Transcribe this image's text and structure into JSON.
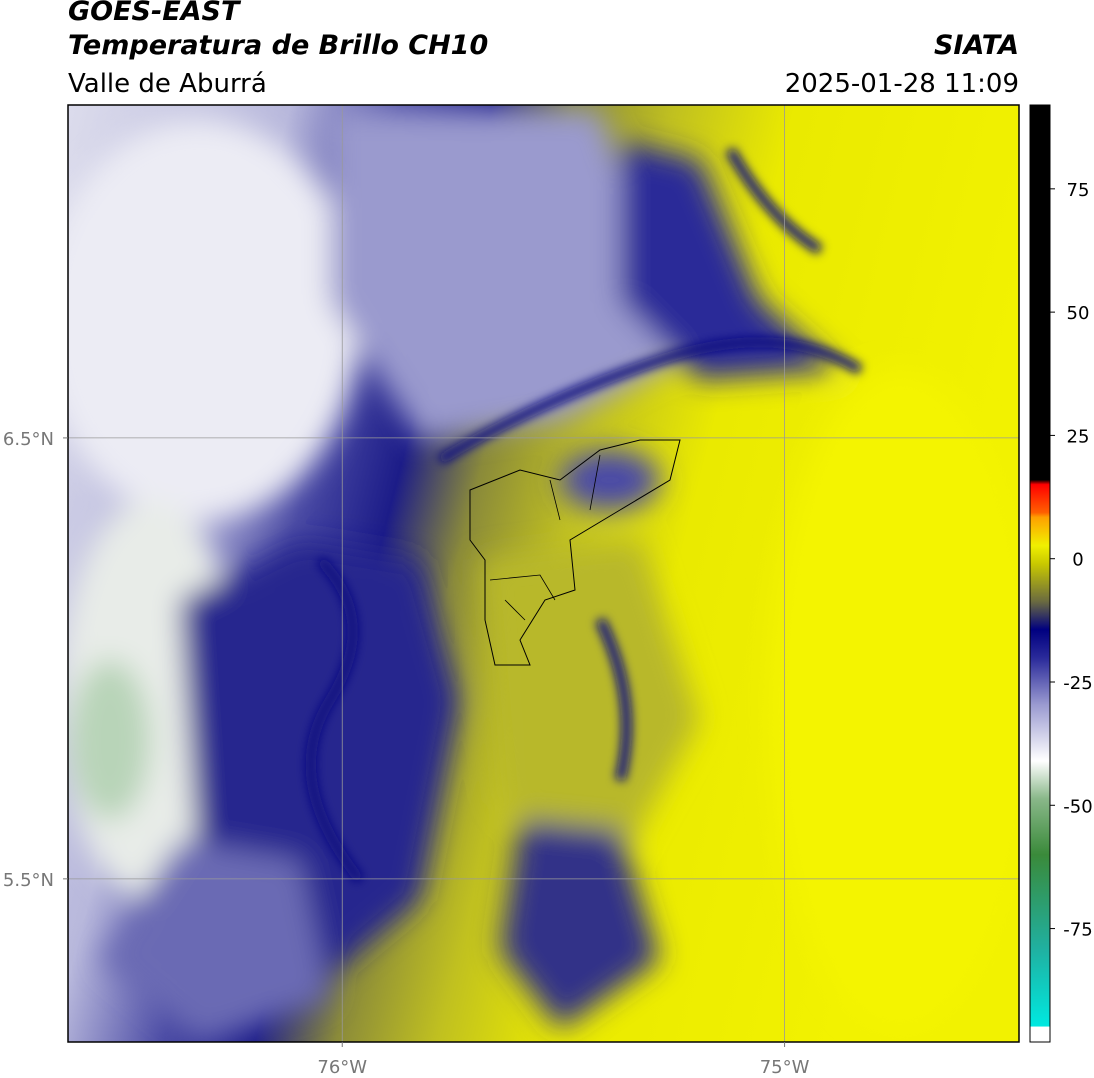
{
  "header": {
    "title": "GOES-EAST",
    "subtitle": "Temperatura de Brillo CH10",
    "source": "SIATA",
    "region": "Valle de Aburrá",
    "datetime": "2025-01-28 11:09"
  },
  "map": {
    "lon_range": [
      -76.62,
      -74.47
    ],
    "lat_range": [
      5.13,
      7.255
    ],
    "lon_ticks": [
      {
        "value": -76,
        "label": "76°W"
      },
      {
        "value": -75,
        "label": "75°W"
      }
    ],
    "lat_ticks": [
      {
        "value": 6.5,
        "label": "6.5°N"
      },
      {
        "value": 5.5,
        "label": "5.5°N"
      }
    ]
  },
  "colorbar": {
    "range": [
      -98,
      92
    ],
    "ticks": [
      75,
      50,
      25,
      0,
      -25,
      -50,
      -75
    ]
  }
}
